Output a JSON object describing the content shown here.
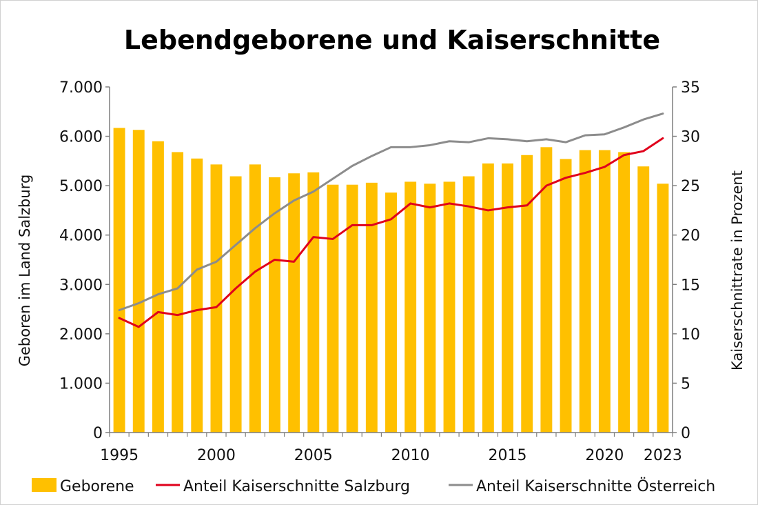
{
  "chart_data": {
    "type": "bar",
    "title": "Lebendgeborene und Kaiserschnitte",
    "x": [
      1995,
      1996,
      1997,
      1998,
      1999,
      2000,
      2001,
      2002,
      2003,
      2004,
      2005,
      2006,
      2007,
      2008,
      2009,
      2010,
      2011,
      2012,
      2013,
      2014,
      2015,
      2016,
      2017,
      2018,
      2019,
      2020,
      2021,
      2022,
      2023
    ],
    "x_tick_labels": [
      "1995",
      "2000",
      "2005",
      "2010",
      "2015",
      "2020",
      "2023"
    ],
    "x_tick_values": [
      1995,
      2000,
      2005,
      2010,
      2015,
      2020,
      2023
    ],
    "ylabel": "Geboren im Land Salzburg",
    "ylabel_right": "Kaiserschnittrate in Prozent",
    "ylim": [
      0,
      7000
    ],
    "ylim_right": [
      0,
      35
    ],
    "y_tick_labels": [
      "0",
      "1.000",
      "2.000",
      "3.000",
      "4.000",
      "5.000",
      "6.000",
      "7.000"
    ],
    "y_tick_values": [
      0,
      1000,
      2000,
      3000,
      4000,
      5000,
      6000,
      7000
    ],
    "y_right_tick_labels": [
      "0",
      "5",
      "10",
      "15",
      "20",
      "25",
      "30",
      "35"
    ],
    "y_right_tick_values": [
      0,
      5,
      10,
      15,
      20,
      25,
      30,
      35
    ],
    "grid": false,
    "legend_position": "bottom",
    "series": [
      {
        "name": "Geborene",
        "type": "bar",
        "axis": "left",
        "color": "#FFC000",
        "values": [
          6170,
          6130,
          5900,
          5680,
          5550,
          5430,
          5190,
          5430,
          5170,
          5250,
          5270,
          5020,
          5020,
          5060,
          4860,
          5080,
          5040,
          5080,
          5190,
          5450,
          5450,
          5620,
          5780,
          5540,
          5720,
          5720,
          5680,
          5390,
          5040
        ]
      },
      {
        "name": "Anteil Kaiserschnitte Salzburg",
        "type": "line",
        "axis": "right",
        "color": "#E0001B",
        "values": [
          11.6,
          10.7,
          12.2,
          11.9,
          12.4,
          12.7,
          14.6,
          16.3,
          17.5,
          17.3,
          19.8,
          19.6,
          21.0,
          21.0,
          21.6,
          23.2,
          22.8,
          23.2,
          22.9,
          22.5,
          22.8,
          23.0,
          25.0,
          25.8,
          26.3,
          26.9,
          28.1,
          28.5,
          29.8
        ]
      },
      {
        "name": "Anteil Kaiserschnitte Österreich",
        "type": "line",
        "axis": "right",
        "color": "#8C8C8C",
        "values": [
          12.4,
          13.1,
          14.0,
          14.6,
          16.5,
          17.3,
          19.0,
          20.7,
          22.2,
          23.5,
          24.4,
          25.7,
          27.0,
          28.0,
          28.9,
          28.9,
          29.1,
          29.5,
          29.4,
          29.8,
          29.7,
          29.5,
          29.7,
          29.4,
          30.1,
          30.2,
          30.9,
          31.7,
          32.3
        ]
      }
    ]
  }
}
